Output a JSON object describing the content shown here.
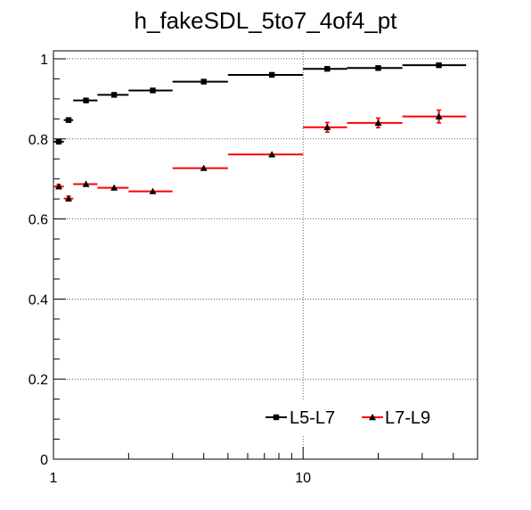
{
  "chart_data": {
    "type": "scatter",
    "title": "h_fakeSDL_5to7_4of4_pt",
    "xlabel": "",
    "ylabel": "",
    "xscale": "log",
    "xlim": [
      1,
      50
    ],
    "ylim": [
      0,
      1.02
    ],
    "grid": true,
    "x_tick_labels": [
      "1",
      "10"
    ],
    "y_tick_labels": [
      "0",
      "0.2",
      "0.4",
      "0.6",
      "0.8",
      "1"
    ],
    "legend_placement": "bottom-right",
    "series": [
      {
        "name": "L5-L7",
        "color": "#000000",
        "marker": "square",
        "points": [
          {
            "x": 1.05,
            "xlo": 1.0,
            "xhi": 1.1,
            "y": 0.793,
            "err": 0.004
          },
          {
            "x": 1.15,
            "xlo": 1.1,
            "xhi": 1.2,
            "y": 0.847,
            "err": 0.004
          },
          {
            "x": 1.35,
            "xlo": 1.2,
            "xhi": 1.5,
            "y": 0.896,
            "err": 0.003
          },
          {
            "x": 1.75,
            "xlo": 1.5,
            "xhi": 2.0,
            "y": 0.91,
            "err": 0.003
          },
          {
            "x": 2.5,
            "xlo": 2.0,
            "xhi": 3.0,
            "y": 0.921,
            "err": 0.003
          },
          {
            "x": 4.0,
            "xlo": 3.0,
            "xhi": 5.0,
            "y": 0.943,
            "err": 0.003
          },
          {
            "x": 7.5,
            "xlo": 5.0,
            "xhi": 10.0,
            "y": 0.96,
            "err": 0.003
          },
          {
            "x": 12.5,
            "xlo": 10.0,
            "xhi": 15.0,
            "y": 0.975,
            "err": 0.003
          },
          {
            "x": 20.0,
            "xlo": 15.0,
            "xhi": 25.0,
            "y": 0.977,
            "err": 0.003
          },
          {
            "x": 35.0,
            "xlo": 25.0,
            "xhi": 45.0,
            "y": 0.984,
            "err": 0.003
          }
        ]
      },
      {
        "name": "L7-L9",
        "color": "#ff0000",
        "marker": "triangle",
        "points": [
          {
            "x": 1.05,
            "xlo": 1.0,
            "xhi": 1.1,
            "y": 0.681,
            "err": 0.005
          },
          {
            "x": 1.15,
            "xlo": 1.1,
            "xhi": 1.2,
            "y": 0.651,
            "err": 0.006
          },
          {
            "x": 1.35,
            "xlo": 1.2,
            "xhi": 1.5,
            "y": 0.687,
            "err": 0.004
          },
          {
            "x": 1.75,
            "xlo": 1.5,
            "xhi": 2.0,
            "y": 0.678,
            "err": 0.004
          },
          {
            "x": 2.5,
            "xlo": 2.0,
            "xhi": 3.0,
            "y": 0.669,
            "err": 0.004
          },
          {
            "x": 4.0,
            "xlo": 3.0,
            "xhi": 5.0,
            "y": 0.727,
            "err": 0.004
          },
          {
            "x": 7.5,
            "xlo": 5.0,
            "xhi": 10.0,
            "y": 0.761,
            "err": 0.004
          },
          {
            "x": 12.5,
            "xlo": 10.0,
            "xhi": 15.0,
            "y": 0.829,
            "err": 0.012
          },
          {
            "x": 20.0,
            "xlo": 15.0,
            "xhi": 25.0,
            "y": 0.84,
            "err": 0.012
          },
          {
            "x": 35.0,
            "xlo": 25.0,
            "xhi": 45.0,
            "y": 0.856,
            "err": 0.016
          }
        ]
      }
    ]
  }
}
